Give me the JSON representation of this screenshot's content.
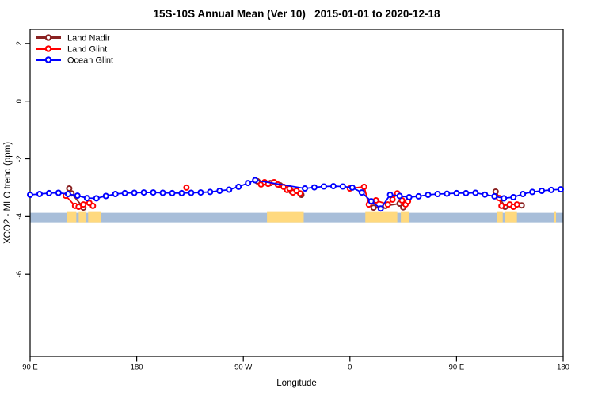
{
  "chart_data": {
    "type": "line",
    "title": "15S-10S Annual Mean (Ver 10)   2015-01-01 to 2020-12-18",
    "xlabel": "Longitude",
    "ylabel": "XCO2 - MLO trend (ppm)",
    "x_axis": {
      "range_deg": [
        0,
        450
      ],
      "note": "longitude wraps eastward starting at 90E",
      "ticks": [
        {
          "deg": 0,
          "label": "90 E"
        },
        {
          "deg": 90,
          "label": "180"
        },
        {
          "deg": 180,
          "label": "90 W"
        },
        {
          "deg": 270,
          "label": "0"
        },
        {
          "deg": 360,
          "label": "90 E"
        },
        {
          "deg": 450,
          "label": "180"
        }
      ]
    },
    "y_axis": {
      "ylim": [
        -8.85,
        2.49
      ],
      "ticks": [
        2,
        0,
        -2,
        -4,
        -6
      ]
    },
    "land_ocean_strip": {
      "value_top": -3.87,
      "value_bottom": -4.2,
      "ocean_color": "#A8BED9",
      "land_color": "#FFD97E",
      "land_segments_deg": [
        [
          31,
          39
        ],
        [
          41,
          47
        ],
        [
          49,
          60
        ],
        [
          200,
          231
        ],
        [
          283,
          310
        ],
        [
          313,
          320
        ],
        [
          394,
          399
        ],
        [
          401,
          411
        ],
        [
          442,
          444
        ]
      ]
    },
    "legend": {
      "position": "top-left",
      "labels": [
        "Land Nadir",
        "Land Glint",
        "Ocean Glint"
      ]
    },
    "series": [
      {
        "name": "Land Nadir",
        "color": "#8B2323",
        "runs": [
          [
            [
              33,
              -3.03
            ],
            [
              35,
              -3.2
            ],
            [
              45,
              -3.69
            ]
          ],
          [
            [
              192,
              -2.78
            ],
            [
              203,
              -2.84
            ],
            [
              211,
              -2.92
            ],
            [
              221,
              -3.14
            ],
            [
              229,
              -3.25
            ]
          ],
          [
            [
              290,
              -3.69
            ],
            [
              300,
              -3.63
            ],
            [
              312,
              -3.55
            ],
            [
              315,
              -3.68
            ]
          ],
          [
            [
              393,
              -3.14
            ],
            [
              401,
              -3.66
            ],
            [
              415,
              -3.61
            ]
          ]
        ]
      },
      {
        "name": "Land Glint",
        "color": "#FF0000",
        "runs": [
          [
            [
              30,
              -3.28
            ],
            [
              38,
              -3.63
            ],
            [
              41,
              -3.66
            ],
            [
              45,
              -3.58
            ],
            [
              50,
              -3.53
            ],
            [
              53,
              -3.63
            ]
          ],
          [
            [
              132,
              -3.0
            ]
          ],
          [
            [
              195,
              -2.89
            ],
            [
              198,
              -2.81
            ],
            [
              201,
              -2.87
            ],
            [
              206,
              -2.81
            ],
            [
              209,
              -2.89
            ],
            [
              214,
              -2.97
            ],
            [
              217,
              -3.08
            ],
            [
              219,
              -3.03
            ],
            [
              222,
              -3.17
            ],
            [
              225,
              -3.11
            ],
            [
              228,
              -3.2
            ]
          ],
          [
            [
              270,
              -3.03
            ],
            [
              282,
              -2.97
            ],
            [
              286,
              -3.58
            ],
            [
              292,
              -3.44
            ],
            [
              302,
              -3.58
            ],
            [
              306,
              -3.41
            ],
            [
              310,
              -3.2
            ],
            [
              314,
              -3.44
            ],
            [
              317,
              -3.58
            ],
            [
              319,
              -3.47
            ]
          ],
          [
            [
              396,
              -3.36
            ],
            [
              398,
              -3.63
            ],
            [
              405,
              -3.58
            ],
            [
              408,
              -3.66
            ],
            [
              411,
              -3.58
            ]
          ]
        ]
      },
      {
        "name": "Ocean Glint",
        "color": "#0000FF",
        "runs": [
          [
            [
              0,
              -3.25
            ],
            [
              8,
              -3.22
            ],
            [
              16,
              -3.19
            ],
            [
              24,
              -3.18
            ],
            [
              32,
              -3.22
            ],
            [
              40,
              -3.28
            ],
            [
              48,
              -3.36
            ],
            [
              56,
              -3.37
            ],
            [
              64,
              -3.29
            ],
            [
              72,
              -3.22
            ],
            [
              80,
              -3.19
            ],
            [
              88,
              -3.18
            ],
            [
              96,
              -3.17
            ],
            [
              104,
              -3.17
            ],
            [
              112,
              -3.18
            ],
            [
              120,
              -3.19
            ],
            [
              128,
              -3.19
            ],
            [
              136,
              -3.18
            ],
            [
              144,
              -3.17
            ],
            [
              152,
              -3.15
            ],
            [
              160,
              -3.11
            ],
            [
              168,
              -3.07
            ],
            [
              176,
              -2.97
            ],
            [
              184,
              -2.84
            ],
            [
              190,
              -2.74
            ],
            [
              232,
              -3.03
            ],
            [
              240,
              -2.99
            ],
            [
              248,
              -2.96
            ],
            [
              256,
              -2.95
            ],
            [
              264,
              -2.96
            ],
            [
              272,
              -3.0
            ],
            [
              280,
              -3.17
            ],
            [
              288,
              -3.47
            ],
            [
              296,
              -3.72
            ],
            [
              304,
              -3.25
            ],
            [
              312,
              -3.29
            ],
            [
              320,
              -3.33
            ],
            [
              328,
              -3.3
            ],
            [
              336,
              -3.25
            ],
            [
              344,
              -3.22
            ],
            [
              352,
              -3.21
            ],
            [
              360,
              -3.19
            ],
            [
              368,
              -3.19
            ],
            [
              376,
              -3.18
            ],
            [
              384,
              -3.24
            ],
            [
              392,
              -3.3
            ],
            [
              400,
              -3.37
            ],
            [
              408,
              -3.33
            ],
            [
              416,
              -3.22
            ],
            [
              424,
              -3.15
            ],
            [
              432,
              -3.11
            ],
            [
              440,
              -3.08
            ],
            [
              448,
              -3.06
            ]
          ]
        ]
      }
    ]
  }
}
